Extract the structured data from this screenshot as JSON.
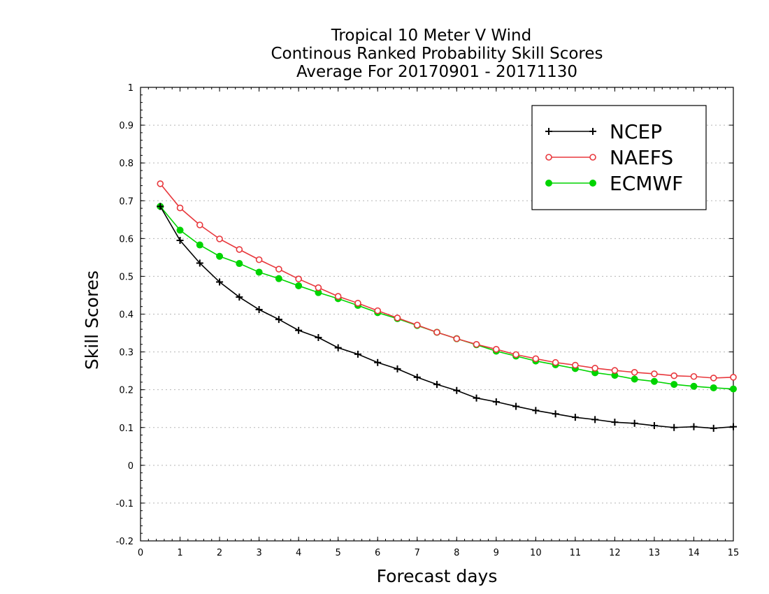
{
  "chart_data": {
    "type": "line",
    "title": [
      "Tropical 10 Meter V Wind",
      "Continous Ranked Probability Skill Scores",
      "Average For 20170901 - 20171130"
    ],
    "xlabel": "Forecast days",
    "ylabel": "Skill Scores",
    "xlim": [
      0,
      15
    ],
    "ylim": [
      -0.2,
      1
    ],
    "xticks": [
      0,
      1,
      2,
      3,
      4,
      5,
      6,
      7,
      8,
      9,
      10,
      11,
      12,
      13,
      14,
      15
    ],
    "yticks": [
      -0.2,
      -0.1,
      0,
      0.1,
      0.2,
      0.3,
      0.4,
      0.5,
      0.6,
      0.7,
      0.8,
      0.9,
      1
    ],
    "ytick_labels": [
      "-0.2",
      "-0.1",
      "0",
      "0.1",
      "0.2",
      "0.3",
      "0.4",
      "0.5",
      "0.6",
      "0.7",
      "0.8",
      "0.9",
      "1"
    ],
    "grid": "horizontal dotted",
    "legend_position": "top-right",
    "x": [
      0.5,
      1,
      1.5,
      2,
      2.5,
      3,
      3.5,
      4,
      4.5,
      5,
      5.5,
      6,
      6.5,
      7,
      7.5,
      8,
      8.5,
      9,
      9.5,
      10,
      10.5,
      11,
      11.5,
      12,
      12.5,
      13,
      13.5,
      14,
      14.5,
      15
    ],
    "series": [
      {
        "name": "NCEP",
        "color": "#000000",
        "marker": "plus",
        "values": [
          0.685,
          0.595,
          0.535,
          0.485,
          0.445,
          0.412,
          0.386,
          0.357,
          0.338,
          0.311,
          0.294,
          0.272,
          0.255,
          0.233,
          0.214,
          0.198,
          0.178,
          0.168,
          0.156,
          0.145,
          0.136,
          0.127,
          0.121,
          0.114,
          0.111,
          0.105,
          0.1,
          0.102,
          0.098,
          0.102
        ]
      },
      {
        "name": "NAEFS",
        "color": "#e8383d",
        "marker": "open-circle",
        "values": [
          0.745,
          0.681,
          0.636,
          0.599,
          0.571,
          0.544,
          0.519,
          0.493,
          0.47,
          0.447,
          0.429,
          0.409,
          0.39,
          0.371,
          0.352,
          0.335,
          0.32,
          0.307,
          0.293,
          0.282,
          0.272,
          0.265,
          0.257,
          0.251,
          0.246,
          0.242,
          0.237,
          0.235,
          0.231,
          0.233
        ]
      },
      {
        "name": "ECMWF",
        "color": "#00d400",
        "marker": "filled-circle",
        "values": [
          0.685,
          0.622,
          0.583,
          0.553,
          0.534,
          0.511,
          0.494,
          0.475,
          0.457,
          0.441,
          0.423,
          0.404,
          0.388,
          0.37,
          0.352,
          0.335,
          0.319,
          0.302,
          0.289,
          0.276,
          0.266,
          0.256,
          0.245,
          0.238,
          0.228,
          0.222,
          0.214,
          0.209,
          0.205,
          0.202
        ]
      }
    ]
  }
}
